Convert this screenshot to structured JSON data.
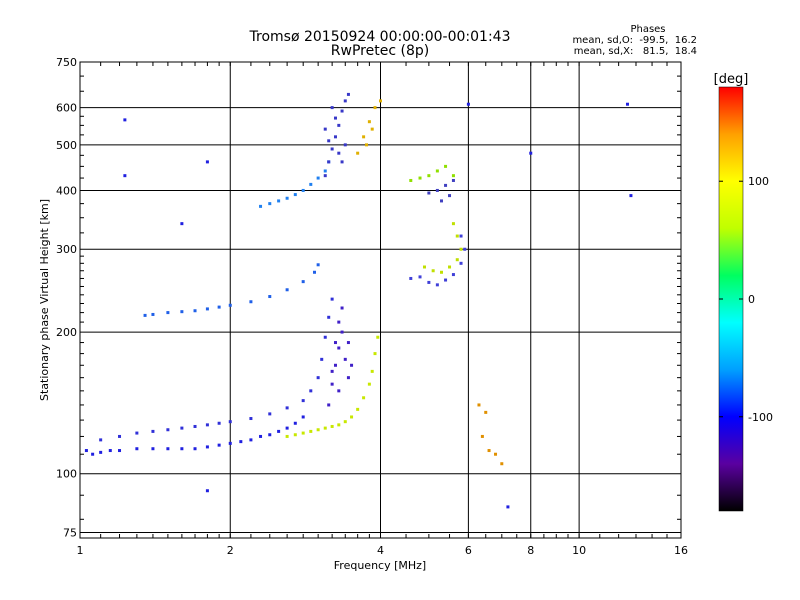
{
  "chart_data": {
    "type": "scatter",
    "title": "Tromsø 20150924 00:00:00-00:01:43",
    "subtitle": "RwPretec (8p)",
    "xlabel": "Frequency [MHz]",
    "ylabel": "Stationary phase Virtual Height [km]",
    "x_scale": "log2",
    "y_scale": "log",
    "xlim": [
      1,
      16
    ],
    "ylim": [
      73,
      750
    ],
    "x_ticks": [
      1,
      2,
      4,
      6,
      8,
      10,
      16
    ],
    "y_ticks": [
      75,
      100,
      200,
      300,
      400,
      500,
      600,
      750
    ],
    "grid": true,
    "phase_box": {
      "heading": "Phases",
      "line_o": "mean, sd,O:  -99.5,  16.2",
      "line_x": "mean, sd,X:   81.5,  18.4"
    },
    "colorbar": {
      "unit": "[deg]",
      "ticks": [
        100,
        0,
        -100
      ],
      "range": [
        -180,
        180
      ],
      "colors": [
        "#000000",
        "#5a00a0",
        "#0000ff",
        "#00a0ff",
        "#00ffff",
        "#00ff60",
        "#c0ff00",
        "#ffff00",
        "#ffa000",
        "#ff0000"
      ]
    },
    "series": [
      {
        "color": "#2020e0",
        "points": [
          [
            1.03,
            112
          ],
          [
            1.06,
            110
          ],
          [
            1.1,
            111
          ],
          [
            1.15,
            112
          ],
          [
            1.2,
            112
          ],
          [
            1.3,
            113
          ],
          [
            1.4,
            113
          ],
          [
            1.5,
            113
          ],
          [
            1.6,
            113
          ],
          [
            1.7,
            113
          ],
          [
            1.8,
            114
          ],
          [
            1.9,
            115
          ],
          [
            2.0,
            116
          ],
          [
            2.1,
            117
          ],
          [
            2.2,
            118
          ],
          [
            2.3,
            120
          ],
          [
            2.4,
            121
          ],
          [
            2.5,
            123
          ],
          [
            2.6,
            125
          ],
          [
            2.7,
            128
          ],
          [
            2.8,
            132
          ]
        ]
      },
      {
        "color": "#3030d8",
        "points": [
          [
            1.1,
            118
          ],
          [
            1.2,
            120
          ],
          [
            1.3,
            122
          ],
          [
            1.4,
            123
          ],
          [
            1.5,
            124
          ],
          [
            1.6,
            125
          ],
          [
            1.7,
            126
          ],
          [
            1.8,
            127
          ],
          [
            1.9,
            128
          ],
          [
            2.0,
            129
          ],
          [
            2.2,
            131
          ],
          [
            2.4,
            134
          ],
          [
            2.6,
            138
          ],
          [
            2.8,
            143
          ],
          [
            2.9,
            150
          ],
          [
            3.0,
            160
          ],
          [
            3.05,
            175
          ],
          [
            3.1,
            195
          ],
          [
            3.15,
            215
          ],
          [
            3.2,
            235
          ]
        ]
      },
      {
        "color": "#4020c8",
        "points": [
          [
            3.15,
            140
          ],
          [
            3.2,
            155
          ],
          [
            3.25,
            170
          ],
          [
            3.3,
            185
          ],
          [
            3.35,
            200
          ],
          [
            3.4,
            175
          ],
          [
            3.45,
            160
          ],
          [
            3.3,
            150
          ],
          [
            3.2,
            165
          ],
          [
            3.25,
            190
          ],
          [
            3.3,
            210
          ],
          [
            3.35,
            225
          ],
          [
            3.45,
            190
          ],
          [
            3.5,
            170
          ]
        ]
      },
      {
        "color": "#c8e800",
        "points": [
          [
            2.6,
            120
          ],
          [
            2.7,
            121
          ],
          [
            2.8,
            122
          ],
          [
            2.9,
            123
          ],
          [
            3.0,
            124
          ],
          [
            3.1,
            125
          ],
          [
            3.2,
            126
          ],
          [
            3.3,
            127
          ],
          [
            3.4,
            129
          ],
          [
            3.5,
            132
          ],
          [
            3.6,
            137
          ],
          [
            3.7,
            145
          ],
          [
            3.8,
            155
          ],
          [
            3.85,
            165
          ],
          [
            3.9,
            180
          ],
          [
            3.95,
            195
          ]
        ]
      },
      {
        "color": "#2060e8",
        "points": [
          [
            1.35,
            217
          ],
          [
            1.4,
            218
          ],
          [
            1.5,
            220
          ],
          [
            1.6,
            221
          ],
          [
            1.7,
            222
          ],
          [
            1.8,
            224
          ],
          [
            1.9,
            226
          ],
          [
            2.0,
            228
          ],
          [
            2.2,
            232
          ],
          [
            2.4,
            238
          ],
          [
            2.6,
            246
          ],
          [
            2.8,
            256
          ],
          [
            2.95,
            268
          ],
          [
            3.0,
            278
          ]
        ]
      },
      {
        "color": "#2080f0",
        "points": [
          [
            2.3,
            370
          ],
          [
            2.4,
            375
          ],
          [
            2.5,
            380
          ],
          [
            2.6,
            385
          ],
          [
            2.7,
            392
          ],
          [
            2.8,
            400
          ],
          [
            2.9,
            412
          ],
          [
            3.0,
            425
          ],
          [
            3.1,
            440
          ],
          [
            3.15,
            460
          ]
        ]
      },
      {
        "color": "#3838c8",
        "points": [
          [
            3.1,
            430
          ],
          [
            3.15,
            460
          ],
          [
            3.2,
            490
          ],
          [
            3.25,
            520
          ],
          [
            3.3,
            550
          ],
          [
            3.35,
            590
          ],
          [
            3.4,
            620
          ],
          [
            3.2,
            600
          ],
          [
            3.1,
            540
          ],
          [
            3.3,
            480
          ],
          [
            3.4,
            500
          ],
          [
            3.35,
            460
          ],
          [
            3.15,
            510
          ],
          [
            3.25,
            570
          ],
          [
            3.45,
            640
          ]
        ]
      },
      {
        "color": "#e0b000",
        "points": [
          [
            3.6,
            480
          ],
          [
            3.7,
            520
          ],
          [
            3.8,
            560
          ],
          [
            3.9,
            600
          ],
          [
            4.0,
            620
          ],
          [
            3.75,
            500
          ],
          [
            3.85,
            540
          ]
        ]
      },
      {
        "color": "#4040d8",
        "points": [
          [
            4.6,
            260
          ],
          [
            4.8,
            262
          ],
          [
            5.0,
            255
          ],
          [
            5.2,
            252
          ],
          [
            5.4,
            258
          ],
          [
            5.6,
            265
          ],
          [
            5.8,
            280
          ],
          [
            5.9,
            300
          ],
          [
            5.8,
            320
          ]
        ]
      },
      {
        "color": "#c0e000",
        "points": [
          [
            4.9,
            275
          ],
          [
            5.1,
            270
          ],
          [
            5.3,
            268
          ],
          [
            5.5,
            275
          ],
          [
            5.7,
            285
          ],
          [
            5.8,
            300
          ],
          [
            5.7,
            320
          ],
          [
            5.6,
            340
          ]
        ]
      },
      {
        "color": "#90e000",
        "points": [
          [
            4.6,
            420
          ],
          [
            4.8,
            425
          ],
          [
            5.0,
            430
          ],
          [
            5.2,
            440
          ],
          [
            5.4,
            450
          ],
          [
            5.6,
            430
          ]
        ]
      },
      {
        "color": "#4040c0",
        "points": [
          [
            5.0,
            395
          ],
          [
            5.2,
            400
          ],
          [
            5.4,
            410
          ],
          [
            5.6,
            420
          ],
          [
            5.3,
            380
          ],
          [
            5.5,
            390
          ]
        ]
      },
      {
        "color": "#e09000",
        "points": [
          [
            6.6,
            112
          ],
          [
            6.8,
            110
          ],
          [
            6.3,
            140
          ],
          [
            6.5,
            135
          ],
          [
            6.4,
            120
          ],
          [
            7.0,
            105
          ]
        ]
      },
      {
        "color": "#2020e0",
        "points": [
          [
            1.23,
            565
          ],
          [
            1.23,
            430
          ],
          [
            1.6,
            340
          ],
          [
            1.8,
            460
          ],
          [
            12.5,
            610
          ],
          [
            12.7,
            390
          ],
          [
            8.0,
            480
          ],
          [
            1.8,
            92
          ],
          [
            6.0,
            610
          ],
          [
            7.2,
            85
          ]
        ]
      }
    ]
  }
}
